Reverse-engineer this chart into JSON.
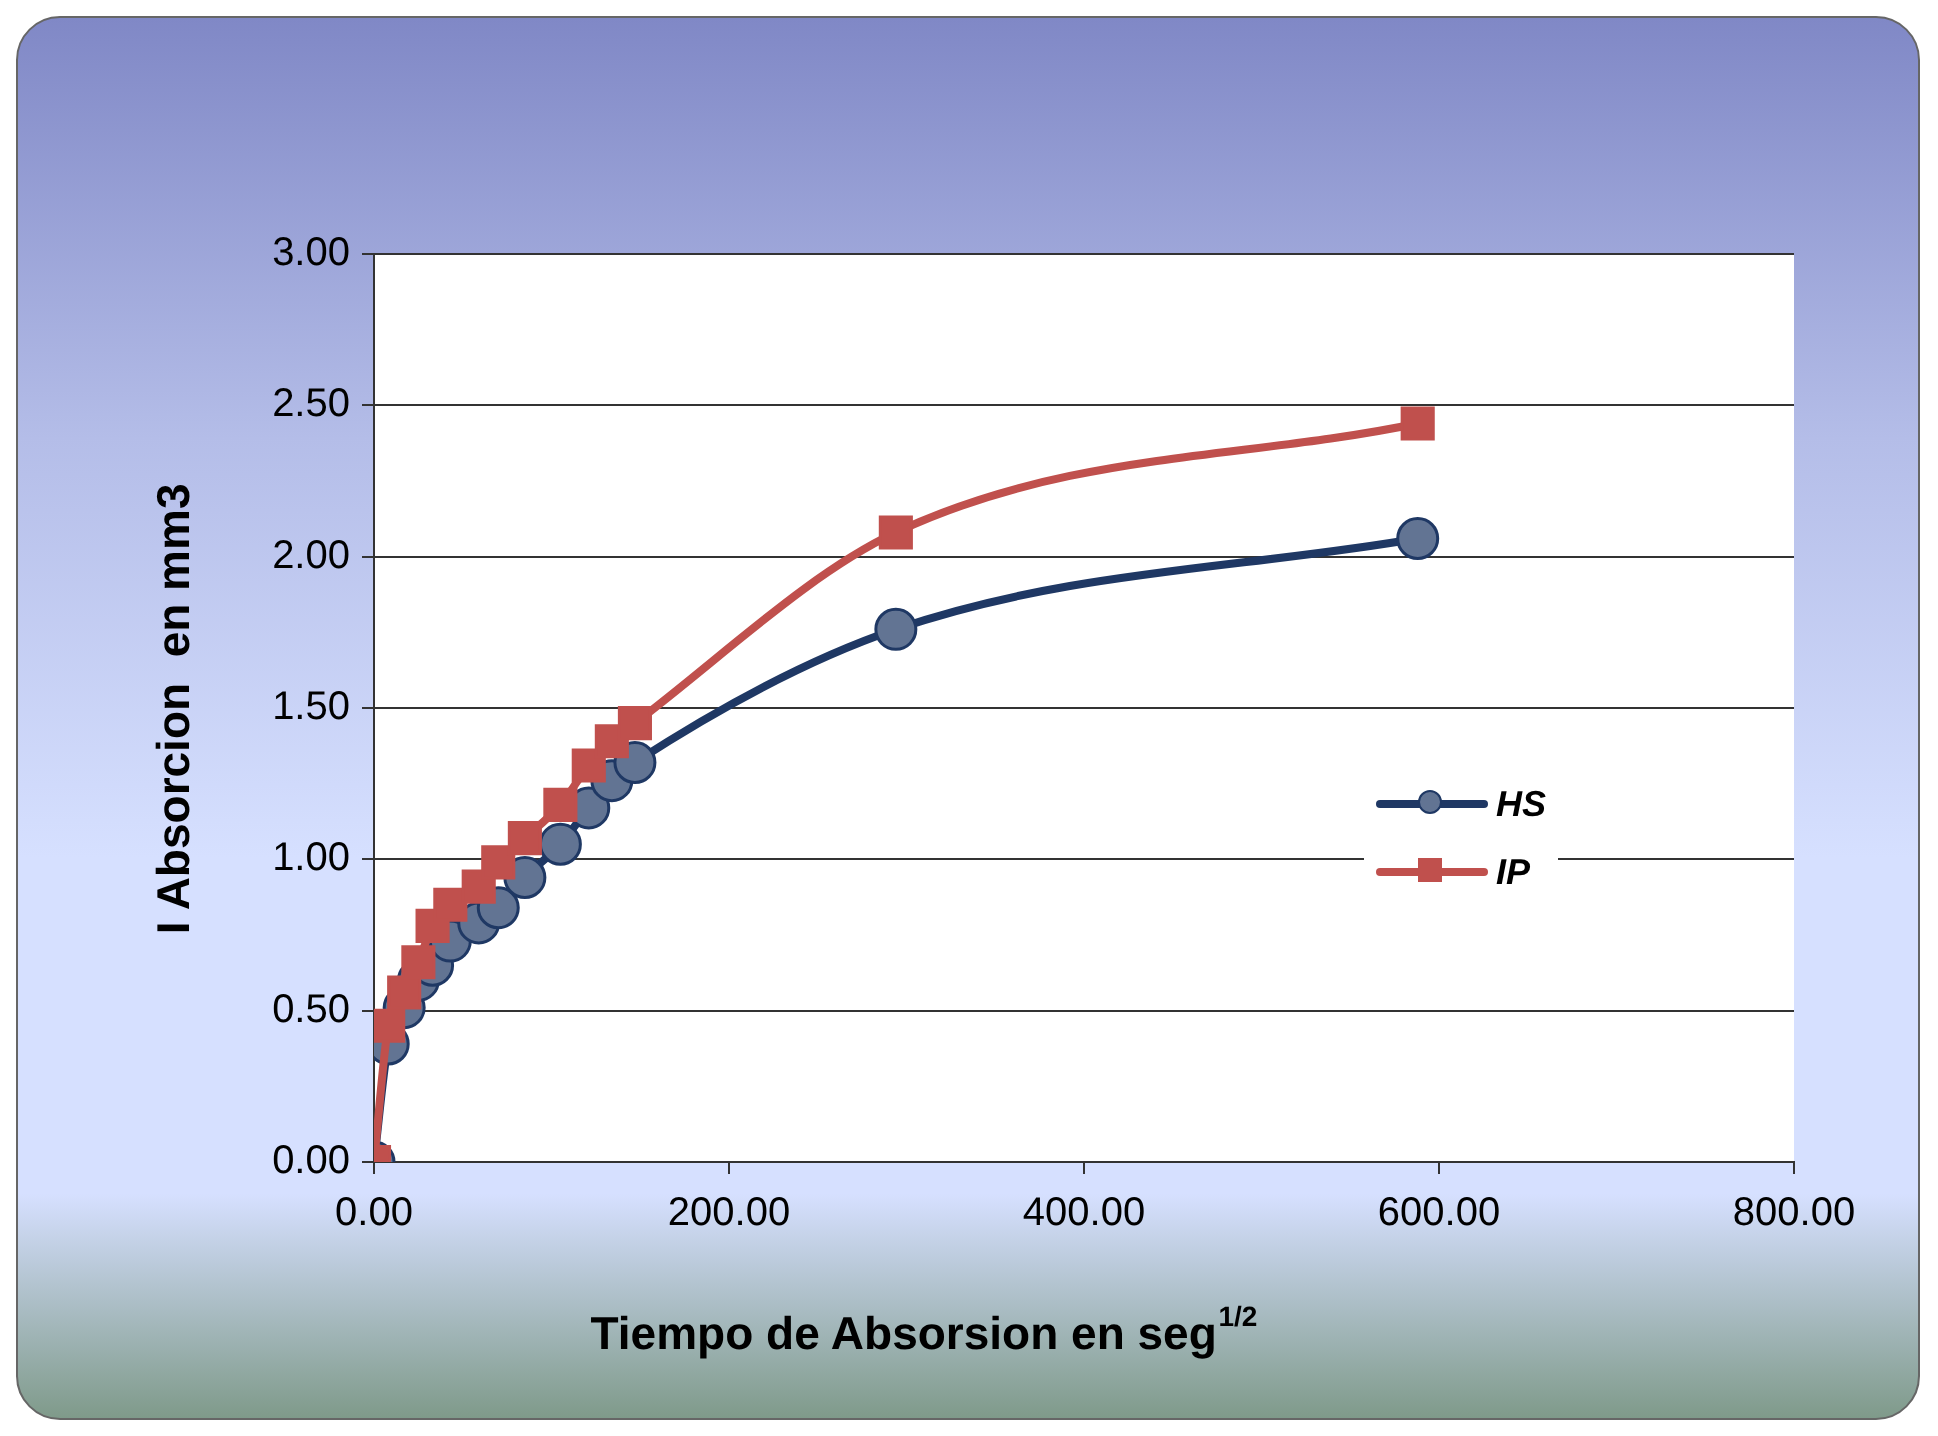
{
  "chart_data": {
    "type": "line",
    "xlabel": "Tiempo de Absorsion en seg$^{1/2}$",
    "ylabel": "I Absorcion  en mm3",
    "x": [
      0,
      8,
      17,
      25,
      33,
      43,
      59,
      70,
      85,
      105,
      121,
      134,
      147,
      294,
      588
    ],
    "series": [
      {
        "name": "HS",
        "color": "#1f3864",
        "marker": "circle",
        "values": [
          0,
          0.39,
          0.51,
          0.6,
          0.65,
          0.73,
          0.79,
          0.84,
          0.94,
          1.05,
          1.17,
          1.26,
          1.32,
          1.76,
          2.06
        ]
      },
      {
        "name": "IP",
        "color": "#c0504d",
        "marker": "square",
        "values": [
          0,
          0.45,
          0.56,
          0.66,
          0.78,
          0.85,
          0.91,
          0.99,
          1.07,
          1.18,
          1.31,
          1.39,
          1.45,
          2.08,
          2.44
        ]
      }
    ],
    "xlim": [
      0,
      800
    ],
    "xticks": [
      {
        "value": 0,
        "label": "0.00"
      },
      {
        "value": 200,
        "label": "200.00"
      },
      {
        "value": 400,
        "label": "400.00"
      },
      {
        "value": 600,
        "label": "600.00"
      },
      {
        "value": 800,
        "label": "800.00"
      }
    ],
    "ylim": [
      0,
      3
    ],
    "yticks": [
      {
        "value": 0,
        "label": "0.00"
      },
      {
        "value": 0.5,
        "label": "0.50"
      },
      {
        "value": 1,
        "label": "1.00"
      },
      {
        "value": 1.5,
        "label": "1.50"
      },
      {
        "value": 2,
        "label": "2.00"
      },
      {
        "value": 2.5,
        "label": "2.50"
      },
      {
        "value": 3,
        "label": "3.00"
      }
    ],
    "grid": "y",
    "legend": "right"
  }
}
